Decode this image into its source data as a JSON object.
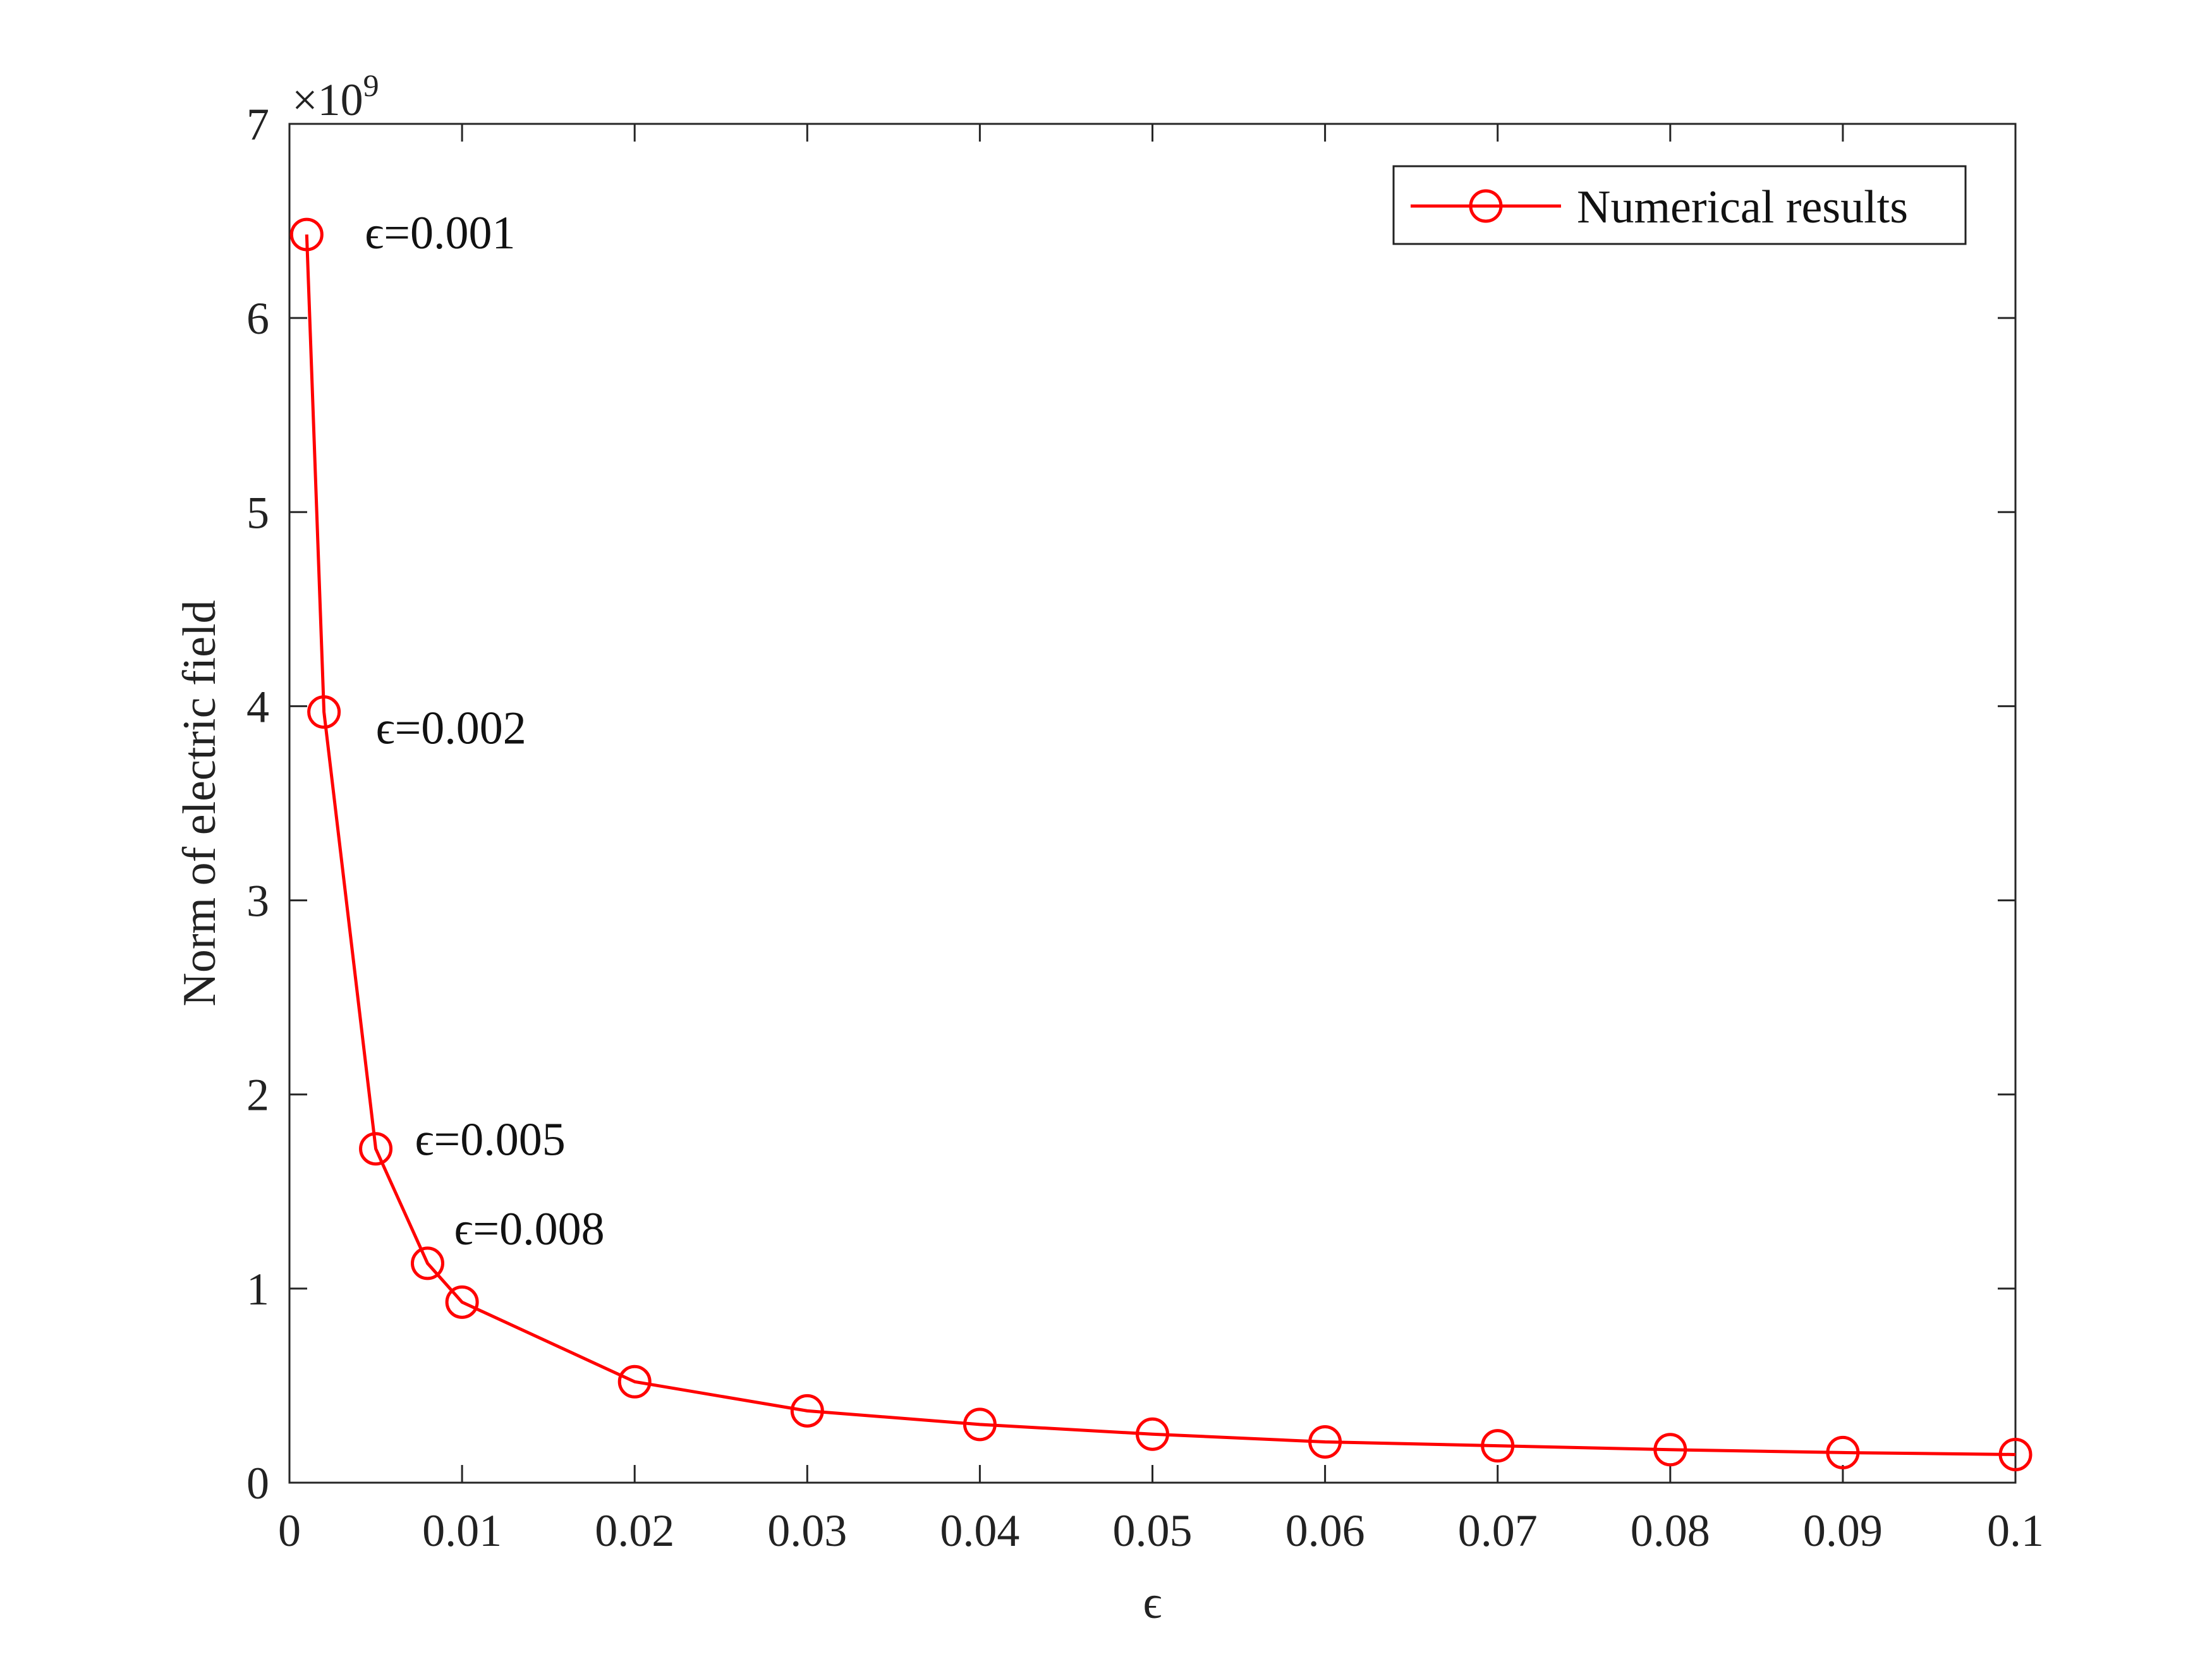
{
  "chart_data": {
    "type": "line",
    "title": "",
    "xlabel": "ϵ",
    "ylabel": "Norm of electric field",
    "xlim": [
      0,
      0.1
    ],
    "ylim": [
      0,
      7
    ],
    "y_multiplier": "×10",
    "y_multiplier_exponent": "9",
    "x_ticks": [
      0,
      0.01,
      0.02,
      0.03,
      0.04,
      0.05,
      0.06,
      0.07,
      0.08,
      0.09,
      0.1
    ],
    "x_tick_labels": [
      "0",
      "0.01",
      "0.02",
      "0.03",
      "0.04",
      "0.05",
      "0.06",
      "0.07",
      "0.08",
      "0.09",
      "0.1"
    ],
    "y_ticks": [
      0,
      1,
      2,
      3,
      4,
      5,
      6,
      7
    ],
    "y_tick_labels": [
      "0",
      "1",
      "2",
      "3",
      "4",
      "5",
      "6",
      "7"
    ],
    "grid": false,
    "legend_position": "top-right",
    "series": [
      {
        "name": "Numerical results",
        "color": "#ff0000",
        "marker": "circle",
        "x": [
          0.001,
          0.002,
          0.005,
          0.008,
          0.01,
          0.02,
          0.03,
          0.04,
          0.05,
          0.06,
          0.07,
          0.08,
          0.09,
          0.1
        ],
        "y": [
          6.43,
          3.97,
          1.72,
          1.13,
          0.93,
          0.52,
          0.37,
          0.3,
          0.25,
          0.21,
          0.19,
          0.17,
          0.155,
          0.145
        ]
      }
    ],
    "annotations": [
      {
        "text": "ϵ=0.001",
        "x": 0.001,
        "y": 6.43
      },
      {
        "text": "ϵ=0.002",
        "x": 0.002,
        "y": 3.97
      },
      {
        "text": "ϵ=0.005",
        "x": 0.005,
        "y": 1.72
      },
      {
        "text": "ϵ=0.008",
        "x": 0.008,
        "y": 1.13
      }
    ]
  }
}
